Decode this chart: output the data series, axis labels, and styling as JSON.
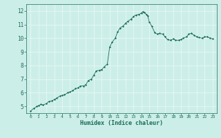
{
  "xlabel": "Humidex (Indice chaleur)",
  "ylabel": "",
  "xlim": [
    -0.5,
    23.5
  ],
  "ylim": [
    4.5,
    12.5
  ],
  "yticks": [
    5,
    6,
    7,
    8,
    9,
    10,
    11,
    12
  ],
  "xticks": [
    0,
    1,
    2,
    3,
    4,
    5,
    6,
    7,
    8,
    9,
    10,
    11,
    12,
    13,
    14,
    15,
    16,
    17,
    18,
    19,
    20,
    21,
    22,
    23
  ],
  "bg_color": "#cceee8",
  "plot_bg_color": "#cceee8",
  "line_color": "#1a6b5a",
  "marker_color": "#1a6b5a",
  "grid_color": "#e8f8f5",
  "tick_color": "#1a6b5a",
  "x": [
    0,
    0.4,
    0.8,
    1.0,
    1.3,
    1.6,
    2.0,
    2.3,
    2.7,
    3.0,
    3.3,
    3.7,
    4.0,
    4.3,
    4.7,
    5.0,
    5.3,
    5.7,
    6.0,
    6.3,
    6.7,
    7.0,
    7.3,
    7.7,
    8.0,
    8.3,
    8.7,
    9.0,
    9.3,
    9.7,
    10.0,
    10.3,
    10.7,
    11.0,
    11.3,
    11.7,
    12.0,
    12.3,
    12.7,
    13.0,
    13.3,
    13.7,
    14.0,
    14.2,
    14.4,
    14.6,
    14.8,
    15.0,
    15.3,
    15.7,
    16.0,
    16.3,
    16.7,
    17.0,
    17.3,
    17.7,
    18.0,
    18.3,
    18.7,
    19.0,
    19.3,
    19.7,
    20.0,
    20.3,
    20.7,
    21.0,
    21.3,
    21.7,
    22.0,
    22.3,
    22.7,
    23.0
  ],
  "y": [
    4.65,
    4.85,
    5.0,
    5.05,
    5.15,
    5.1,
    5.2,
    5.35,
    5.4,
    5.5,
    5.6,
    5.75,
    5.8,
    5.85,
    6.0,
    6.05,
    6.15,
    6.3,
    6.35,
    6.5,
    6.5,
    6.6,
    6.9,
    7.0,
    7.3,
    7.6,
    7.65,
    7.7,
    7.9,
    8.1,
    9.35,
    9.7,
    10.0,
    10.45,
    10.75,
    10.9,
    11.1,
    11.25,
    11.4,
    11.6,
    11.7,
    11.75,
    11.85,
    11.95,
    11.9,
    11.75,
    11.65,
    11.2,
    10.9,
    10.4,
    10.3,
    10.35,
    10.3,
    10.1,
    9.9,
    9.85,
    9.95,
    9.85,
    9.85,
    9.9,
    10.0,
    10.1,
    10.3,
    10.35,
    10.2,
    10.1,
    10.05,
    10.0,
    10.1,
    10.1,
    10.0,
    9.95
  ]
}
